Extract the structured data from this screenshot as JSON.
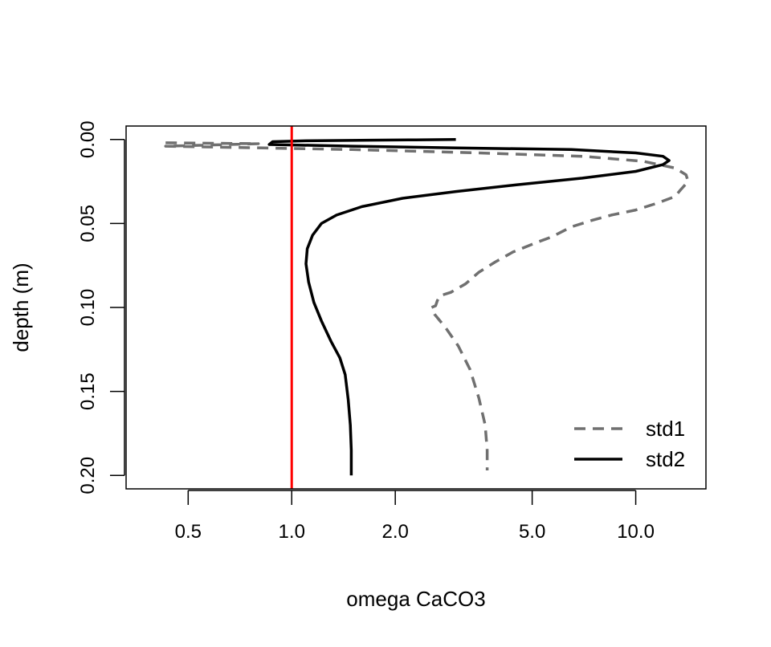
{
  "chart_data": {
    "type": "line",
    "title": "",
    "xlabel": "omega CaCO3",
    "ylabel": "depth (m)",
    "x_scale": "log",
    "xlim": [
      0.33,
      16
    ],
    "ylim": [
      0.208,
      -0.008
    ],
    "x_ticks": [
      {
        "value": 0.5,
        "label": "0.5"
      },
      {
        "value": 1.0,
        "label": "1.0"
      },
      {
        "value": 2.0,
        "label": "2.0"
      },
      {
        "value": 5.0,
        "label": "5.0"
      },
      {
        "value": 10.0,
        "label": "10.0"
      }
    ],
    "y_ticks": [
      {
        "value": 0.0,
        "label": "0.00"
      },
      {
        "value": 0.05,
        "label": "0.05"
      },
      {
        "value": 0.1,
        "label": "0.10"
      },
      {
        "value": 0.15,
        "label": "0.15"
      },
      {
        "value": 0.2,
        "label": "0.20"
      }
    ],
    "reference_line": {
      "x": 1.0,
      "color": "#ff0000"
    },
    "legend_position": "bottom-right",
    "grid": false,
    "series": [
      {
        "name": "std1",
        "color": "#707070",
        "style": "dashed",
        "points": [
          [
            0.43,
            0.002
          ],
          [
            0.8,
            0.0025
          ],
          [
            0.43,
            0.004
          ],
          [
            1.5,
            0.006
          ],
          [
            3.5,
            0.008
          ],
          [
            7.0,
            0.01
          ],
          [
            10.5,
            0.013
          ],
          [
            13.0,
            0.017
          ],
          [
            14.0,
            0.021
          ],
          [
            14.2,
            0.025
          ],
          [
            13.5,
            0.03
          ],
          [
            13.0,
            0.034
          ],
          [
            11.5,
            0.038
          ],
          [
            10.0,
            0.042
          ],
          [
            8.5,
            0.045
          ],
          [
            7.5,
            0.048
          ],
          [
            6.5,
            0.052
          ],
          [
            5.7,
            0.058
          ],
          [
            5.2,
            0.061
          ],
          [
            4.4,
            0.067
          ],
          [
            3.9,
            0.073
          ],
          [
            3.5,
            0.079
          ],
          [
            3.2,
            0.086
          ],
          [
            2.9,
            0.091
          ],
          [
            2.7,
            0.093
          ],
          [
            2.65,
            0.096
          ],
          [
            2.62,
            0.099
          ],
          [
            2.55,
            0.1
          ],
          [
            2.6,
            0.104
          ],
          [
            2.8,
            0.112
          ],
          [
            3.05,
            0.123
          ],
          [
            3.3,
            0.137
          ],
          [
            3.5,
            0.154
          ],
          [
            3.65,
            0.17
          ],
          [
            3.7,
            0.185
          ],
          [
            3.7,
            0.197
          ]
        ]
      },
      {
        "name": "std2",
        "color": "#000000",
        "style": "solid",
        "points": [
          [
            3.0,
            0.0
          ],
          [
            2.3,
            0.0002
          ],
          [
            1.7,
            0.0004
          ],
          [
            1.1,
            0.0008
          ],
          [
            0.88,
            0.0013
          ],
          [
            0.86,
            0.003
          ],
          [
            1.5,
            0.004
          ],
          [
            3.0,
            0.005
          ],
          [
            6.5,
            0.006
          ],
          [
            10.0,
            0.008
          ],
          [
            12.0,
            0.01
          ],
          [
            12.5,
            0.0125
          ],
          [
            12.0,
            0.015
          ],
          [
            10.0,
            0.019
          ],
          [
            7.0,
            0.023
          ],
          [
            4.5,
            0.027
          ],
          [
            3.0,
            0.031
          ],
          [
            2.1,
            0.035
          ],
          [
            1.6,
            0.04
          ],
          [
            1.35,
            0.045
          ],
          [
            1.22,
            0.05
          ],
          [
            1.15,
            0.057
          ],
          [
            1.11,
            0.065
          ],
          [
            1.1,
            0.074
          ],
          [
            1.12,
            0.085
          ],
          [
            1.16,
            0.097
          ],
          [
            1.22,
            0.108
          ],
          [
            1.3,
            0.12
          ],
          [
            1.38,
            0.13
          ],
          [
            1.43,
            0.14
          ],
          [
            1.46,
            0.155
          ],
          [
            1.48,
            0.17
          ],
          [
            1.49,
            0.185
          ],
          [
            1.49,
            0.2
          ]
        ]
      }
    ]
  }
}
